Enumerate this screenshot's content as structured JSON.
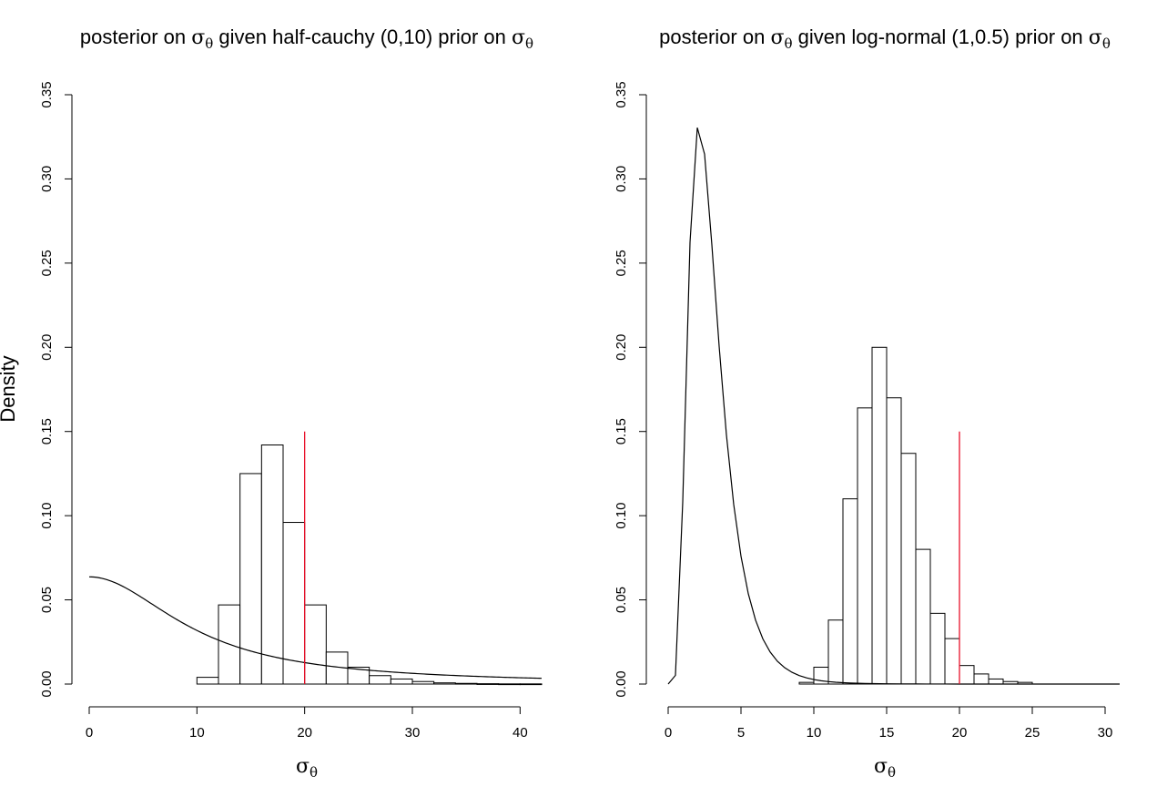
{
  "shared_ylabel": "Density",
  "chart_data": [
    {
      "type": "histogram",
      "title": {
        "prefix": "posterior on ",
        "sym1": "σ",
        "sub1": "θ",
        "middle": " given half-cauchy (0,10) prior on  ",
        "sym2": "σ",
        "sub2": "θ"
      },
      "xlabel": {
        "sym": "σ",
        "sub": "θ"
      },
      "xlim": [
        0,
        42
      ],
      "ylim": [
        0,
        0.35
      ],
      "xticks": [
        "0",
        "10",
        "20",
        "30",
        "40"
      ],
      "yticks": [
        "0.00",
        "0.05",
        "0.10",
        "0.15",
        "0.20",
        "0.25",
        "0.30",
        "0.35"
      ],
      "bin_width": 2,
      "bin_starts": [
        10,
        12,
        14,
        16,
        18,
        20,
        22,
        24,
        26,
        28,
        30,
        32,
        34,
        36,
        38,
        40
      ],
      "bin_values": [
        0.004,
        0.047,
        0.125,
        0.142,
        0.096,
        0.047,
        0.019,
        0.01,
        0.005,
        0.003,
        0.0015,
        0.0007,
        0.0004,
        0.0002,
        0.0001,
        0.0001
      ],
      "prior_curve": {
        "family": "half-cauchy",
        "location": 0,
        "scale": 10,
        "x_range": [
          0,
          42
        ]
      },
      "reference_line": {
        "x": 20,
        "y_max": 0.15,
        "color": "#e8102a"
      }
    },
    {
      "type": "histogram",
      "title": {
        "prefix": "posterior on ",
        "sym1": "σ",
        "sub1": "θ",
        "middle": " given log-normal (1,0.5) prior on ",
        "sym2": "σ",
        "sub2": "θ"
      },
      "xlabel": {
        "sym": "σ",
        "sub": "θ"
      },
      "xlim": [
        0,
        31
      ],
      "ylim": [
        0,
        0.35
      ],
      "xticks": [
        "0",
        "5",
        "10",
        "15",
        "20",
        "25",
        "30"
      ],
      "yticks": [
        "0.00",
        "0.05",
        "0.10",
        "0.15",
        "0.20",
        "0.25",
        "0.30",
        "0.35"
      ],
      "bin_width": 1,
      "bin_starts": [
        9,
        10,
        11,
        12,
        13,
        14,
        15,
        16,
        17,
        18,
        19,
        20,
        21,
        22,
        23,
        24
      ],
      "bin_values": [
        0.001,
        0.01,
        0.038,
        0.11,
        0.164,
        0.2,
        0.17,
        0.137,
        0.08,
        0.042,
        0.027,
        0.011,
        0.006,
        0.003,
        0.0015,
        0.001
      ],
      "prior_curve": {
        "family": "log-normal",
        "meanlog": 1,
        "sdlog": 0.5,
        "x_values": [
          0,
          0.5,
          1.0,
          1.5,
          2.0,
          2.5,
          3.0,
          3.5,
          4.0,
          4.5,
          5.0,
          5.5,
          6.0,
          6.5,
          7.0,
          7.5,
          8.0,
          8.5,
          9.0,
          9.5,
          10.0,
          10.5,
          11.0,
          11.5,
          12.0,
          12.5,
          13.0,
          13.5,
          14.0,
          15.0,
          16.0,
          17.0,
          18.0,
          19.0,
          20.0,
          22.0,
          24.0,
          26.0,
          28.0,
          31.0
        ]
      },
      "reference_line": {
        "x": 20,
        "y_max": 0.15,
        "color": "#e8102a"
      }
    }
  ]
}
